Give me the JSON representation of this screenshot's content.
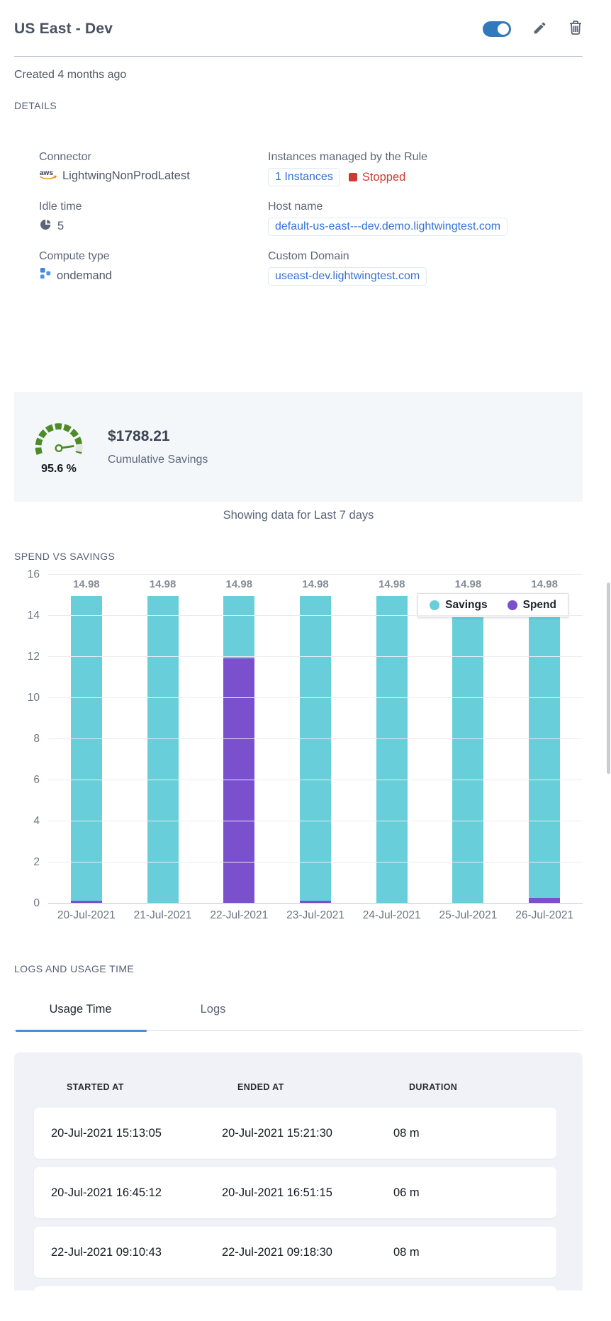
{
  "header": {
    "title": "US East - Dev",
    "toggle_on": true
  },
  "created_text": "Created 4 months ago",
  "details": {
    "section_title": "DETAILS",
    "connector": {
      "label": "Connector",
      "value": "LightwingNonProdLatest",
      "icon": "aws-logo"
    },
    "instances": {
      "label": "Instances managed by the Rule",
      "link": "1 Instances",
      "status": "Stopped"
    },
    "idle_time": {
      "label": "Idle time",
      "value": "5"
    },
    "host_name": {
      "label": "Host name",
      "link": "default-us-east---dev.demo.lightwingtest.com"
    },
    "compute_type": {
      "label": "Compute type",
      "value": "ondemand"
    },
    "custom_domain": {
      "label": "Custom Domain",
      "link": "useast-dev.lightwingtest.com"
    }
  },
  "savings_card": {
    "gauge_percent": "95.6 %",
    "amount": "$1788.21",
    "caption": "Cumulative Savings"
  },
  "period_note": "Showing data for Last 7 days",
  "chart_section_title": "SPEND VS SAVINGS",
  "chart_data": {
    "type": "bar",
    "stacked": true,
    "title": "SPEND VS SAVINGS",
    "categories": [
      "20-Jul-2021",
      "21-Jul-2021",
      "22-Jul-2021",
      "23-Jul-2021",
      "24-Jul-2021",
      "25-Jul-2021",
      "26-Jul-2021"
    ],
    "series": [
      {
        "name": "Savings",
        "color": "#68cfda",
        "values": [
          14.83,
          14.98,
          3.05,
          14.83,
          14.98,
          14.98,
          14.7
        ]
      },
      {
        "name": "Spend",
        "color": "#7a50cc",
        "values": [
          0.15,
          0,
          11.93,
          0.15,
          0,
          0,
          0.28
        ]
      }
    ],
    "bar_total_labels": [
      "14.98",
      "14.98",
      "14.98",
      "14.98",
      "14.98",
      "14.98",
      "14.98"
    ],
    "ylim": [
      0,
      16
    ],
    "ytick_step": 2,
    "grid": true,
    "legend_position": "top-right-overlay"
  },
  "logs_section": {
    "title": "LOGS AND USAGE TIME",
    "tabs": [
      {
        "label": "Usage Time",
        "active": true
      },
      {
        "label": "Logs",
        "active": false
      }
    ],
    "table": {
      "columns": [
        "STARTED AT",
        "ENDED AT",
        "DURATION"
      ],
      "rows": [
        [
          "20-Jul-2021 15:13:05",
          "20-Jul-2021 15:21:30",
          "08 m"
        ],
        [
          "20-Jul-2021 16:45:12",
          "20-Jul-2021 16:51:15",
          "06 m"
        ],
        [
          "22-Jul-2021 09:10:43",
          "22-Jul-2021 09:18:30",
          "08 m"
        ]
      ]
    }
  },
  "colors": {
    "toggle_blue": "#3279bb",
    "link_blue": "#3371d6",
    "status_red": "#cd3a31",
    "savings_teal": "#68cfda",
    "spend_purple": "#7a50cc",
    "gauge_green": "#4e8b28",
    "card_bg": "#f3f7fa",
    "table_bg": "#f1f2f7",
    "tab_underline": "#4a90d8"
  }
}
